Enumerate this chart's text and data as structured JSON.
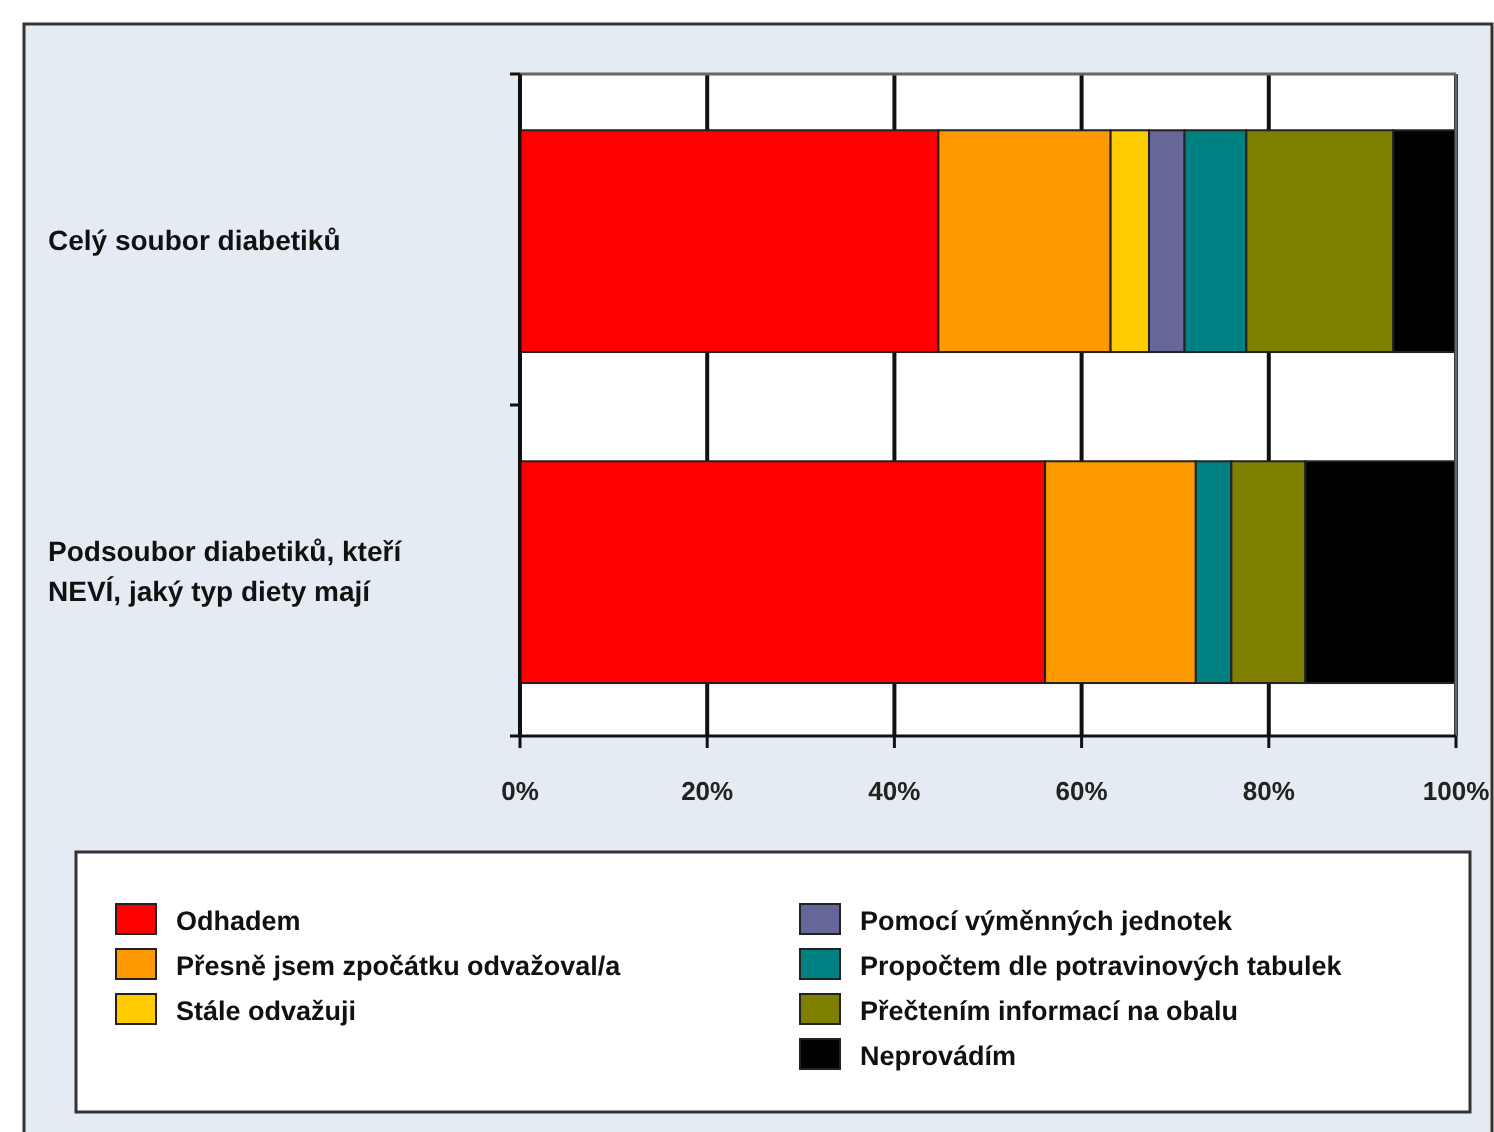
{
  "chart_data": {
    "type": "bar",
    "orientation": "horizontal",
    "stacked": true,
    "categories": [
      "Celý soubor diabetiků",
      "Podsoubor diabetiků, kteří NEVÍ, jaký typ diety mají"
    ],
    "series": [
      {
        "name": "Odhadem",
        "color": "#ff0000",
        "values": [
          44.7,
          56.1
        ]
      },
      {
        "name": "Přesně jsem zpočátku odvažoval/a",
        "color": "#ff9900",
        "values": [
          18.4,
          16.1
        ]
      },
      {
        "name": "Stále odvažuji",
        "color": "#ffcc00",
        "values": [
          4.1,
          0
        ]
      },
      {
        "name": "Pomocí výměnných jednotek",
        "color": "#666699",
        "values": [
          3.8,
          0
        ]
      },
      {
        "name": "Propočtem dle potravinových tabulek",
        "color": "#008080",
        "values": [
          6.6,
          3.8
        ]
      },
      {
        "name": "Přečtením informací na obalu",
        "color": "#808000",
        "values": [
          15.7,
          7.9
        ]
      },
      {
        "name": "Neprovádím",
        "color": "#000000",
        "values": [
          6.7,
          16.1
        ]
      }
    ],
    "xlim": [
      0,
      100
    ],
    "xticks": [
      {
        "value": 0,
        "label": "0%"
      },
      {
        "value": 20,
        "label": "20%"
      },
      {
        "value": 40,
        "label": "40%"
      },
      {
        "value": 60,
        "label": "60%"
      },
      {
        "value": 80,
        "label": "80%"
      },
      {
        "value": 100,
        "label": "100%"
      }
    ],
    "grid": "x",
    "legend": "bottom"
  }
}
